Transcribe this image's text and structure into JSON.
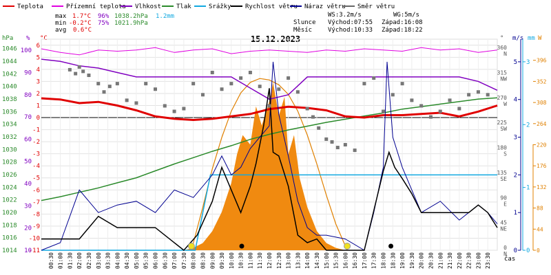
{
  "chart_data": {
    "type": "line",
    "title": "15.12.2023",
    "legend": [
      {
        "label": "Teplota",
        "color": "#e00000"
      },
      {
        "label": "Přízemní teplota",
        "color": "#e000e0"
      },
      {
        "label": "Vlhkost",
        "color": "#8000c0"
      },
      {
        "label": "Tlak",
        "color": "#2a8a2a"
      },
      {
        "label": "Srážky",
        "color": "#10a8e0"
      },
      {
        "label": "Rychlost větru",
        "color": "#000000"
      },
      {
        "label": "Náraz větru",
        "color": "#000090"
      },
      {
        "label": "Směr větru",
        "color": "#666666"
      }
    ],
    "stats": {
      "max": {
        "label": "max",
        "temp": "1.7°C",
        "hum": "96%",
        "press": "1038.2hPa",
        "rain": "1.2mm"
      },
      "min": {
        "label": "min",
        "temp": "-0.2°C",
        "hum": "75%",
        "press": "1021.9hPa"
      },
      "avg": {
        "label": "avg",
        "temp": "0.6°C"
      }
    },
    "info": {
      "wind": "WS:3.2m/s",
      "gust": "WG:5m/s",
      "sun_label": "Slunce",
      "sunrise": "Východ:07:55",
      "sunset": "Západ:16:08",
      "moon_label": "Měsíc",
      "moonrise": "Východ:10:33",
      "moonset": "Západ:18:22"
    },
    "axis_units": {
      "pressure": "hPa",
      "humidity": "%",
      "temperature": "°C",
      "direction": "°",
      "wind": "m/s",
      "rain": "mm",
      "solar": "W",
      "time": "čas"
    },
    "pressure_ticks": [
      "1014",
      "1016",
      "1018",
      "1020",
      "1022",
      "1024",
      "1026",
      "1028",
      "1030",
      "1032",
      "1034",
      "1036",
      "1038",
      "1040",
      "1042",
      "1044",
      "1046"
    ],
    "humidity_ticks": [
      "10",
      "20",
      "30",
      "40",
      "50",
      "60",
      "70",
      "80",
      "90",
      "100"
    ],
    "temperature_ticks": [
      "-11",
      "-10",
      "-9",
      "-8",
      "-7",
      "-6",
      "-5",
      "-4",
      "-3",
      "-2",
      "-1",
      "0",
      "1",
      "2",
      "3",
      "4",
      "5",
      "6"
    ],
    "direction_ticks": [
      {
        "deg": 0,
        "deg_label": "0",
        "dir": "N"
      },
      {
        "deg": 45,
        "deg_label": "45",
        "dir": "NE"
      },
      {
        "deg": 90,
        "deg_label": "90",
        "dir": "E"
      },
      {
        "deg": 135,
        "deg_label": "135",
        "dir": "SE"
      },
      {
        "deg": 180,
        "deg_label": "180",
        "dir": "S"
      },
      {
        "deg": 225,
        "deg_label": "225",
        "dir": "SW"
      },
      {
        "deg": 270,
        "deg_label": "270",
        "dir": "W"
      },
      {
        "deg": 315,
        "deg_label": "315",
        "dir": "NW"
      },
      {
        "deg": 360,
        "deg_label": "360",
        "dir": "N"
      }
    ],
    "wind_ticks": [
      "0",
      "1",
      "2",
      "3",
      "4",
      "5"
    ],
    "rain_ticks": [
      "0",
      "1",
      "2",
      "3"
    ],
    "solar_ticks": [
      "0",
      "44",
      "88",
      "132",
      "176",
      "220",
      "264",
      "308",
      "352",
      "396"
    ],
    "time_labels": [
      "00:30",
      "01:00",
      "01:30",
      "02:00",
      "02:30",
      "03:00",
      "03:30",
      "04:00",
      "04:30",
      "05:00",
      "05:30",
      "06:00",
      "06:30",
      "07:00",
      "07:30",
      "08:00",
      "08:30",
      "09:00",
      "09:30",
      "10:00",
      "10:30",
      "11:00",
      "11:30",
      "12:00",
      "12:30",
      "13:00",
      "13:30",
      "14:00",
      "14:30",
      "15:00",
      "15:30",
      "16:00",
      "16:30",
      "17:00",
      "17:30",
      "18:00",
      "18:30",
      "19:00",
      "19:30",
      "20:00",
      "20:30",
      "21:00",
      "21:30",
      "22:00",
      "22:30",
      "23:00",
      "23:30"
    ],
    "series": {
      "temperature": {
        "hours": [
          0,
          1,
          2,
          3,
          4,
          5,
          6,
          7,
          8,
          9,
          10,
          11,
          12,
          13,
          14,
          15,
          16,
          17,
          18,
          19,
          20,
          21,
          22,
          23,
          24
        ],
        "values": [
          1.6,
          1.5,
          1.2,
          1.3,
          1.0,
          0.6,
          0.1,
          -0.1,
          -0.2,
          -0.1,
          0.1,
          0.3,
          0.7,
          0.9,
          0.8,
          0.6,
          0.1,
          0.0,
          0.2,
          0.2,
          0.3,
          0.4,
          0.1,
          0.5,
          1.0
        ]
      },
      "ground_temperature": {
        "hours": [
          0,
          1,
          2,
          3,
          4,
          5,
          6,
          7,
          8,
          9,
          10,
          11,
          12,
          13,
          14,
          15,
          16,
          17,
          18,
          19,
          20,
          21,
          22,
          23,
          24
        ],
        "values": [
          5.7,
          5.4,
          5.2,
          5.6,
          5.5,
          5.6,
          5.8,
          5.4,
          5.6,
          5.7,
          5.3,
          5.5,
          5.6,
          5.5,
          5.4,
          5.6,
          5.5,
          5.7,
          5.6,
          5.5,
          5.8,
          5.6,
          5.7,
          5.4,
          5.6
        ]
      },
      "humidity": {
        "hours": [
          0,
          1,
          2,
          3,
          4,
          5,
          6,
          7,
          8,
          9,
          10,
          11,
          12,
          13,
          14,
          15,
          16,
          17,
          18,
          19,
          20,
          21,
          22,
          23,
          24
        ],
        "values": [
          96,
          95,
          93,
          92,
          90,
          88,
          88,
          88,
          88,
          88,
          88,
          83,
          78,
          80,
          88,
          88,
          88,
          88,
          88,
          88,
          88,
          88,
          88,
          86,
          82
        ]
      },
      "pressure": {
        "hours": [
          0,
          1,
          2,
          3,
          4,
          5,
          6,
          7,
          8,
          9,
          10,
          11,
          12,
          13,
          14,
          15,
          16,
          17,
          18,
          19,
          20,
          21,
          22,
          23,
          24
        ],
        "values": [
          1021.9,
          1022.5,
          1023.2,
          1023.9,
          1024.7,
          1025.5,
          1026.6,
          1027.7,
          1028.7,
          1029.7,
          1030.6,
          1031.6,
          1032.4,
          1033.1,
          1033.7,
          1034.3,
          1034.8,
          1035.3,
          1035.8,
          1036.4,
          1036.8,
          1037.2,
          1037.6,
          1038.0,
          1038.2
        ]
      },
      "rain_cumulative": {
        "hours": [
          0,
          8.1,
          8.9,
          9.0,
          24
        ],
        "values": [
          0,
          0,
          1.2,
          1.2,
          1.2
        ]
      },
      "wind_speed": {
        "hours": [
          0,
          2,
          3,
          4,
          6,
          7.5,
          8.2,
          9,
          9.5,
          10,
          10.5,
          11,
          11.3,
          11.7,
          12,
          12.2,
          12.5,
          13,
          13.5,
          14,
          14.5,
          15,
          16,
          17,
          18,
          18.3,
          18.6,
          19,
          19.5,
          20,
          21,
          22,
          22.5,
          23,
          23.5,
          24
        ],
        "values": [
          0.3,
          0.3,
          0.9,
          0.6,
          0.6,
          0.0,
          0.4,
          1.3,
          2.2,
          1.6,
          1.0,
          1.7,
          2.3,
          3.3,
          4.3,
          2.6,
          2.5,
          1.7,
          0.4,
          0.2,
          0.3,
          0.0,
          0.0,
          0.0,
          2.1,
          2.6,
          2.2,
          1.9,
          1.5,
          1.0,
          1.0,
          1.0,
          1.0,
          1.2,
          1.0,
          0.6
        ]
      },
      "wind_gust": {
        "hours": [
          0,
          1,
          2,
          3,
          4,
          5,
          6,
          7,
          8,
          9,
          9.5,
          10,
          10.5,
          11,
          11.5,
          12,
          12.2,
          12.5,
          13,
          13.5,
          14,
          14.5,
          15,
          16,
          17,
          17.5,
          18,
          18.2,
          18.5,
          19,
          19.5,
          20,
          21,
          22,
          23,
          23.5,
          24
        ],
        "values": [
          0.0,
          0.2,
          1.6,
          1.0,
          1.2,
          1.3,
          1.0,
          1.6,
          1.4,
          2.0,
          2.5,
          2.0,
          2.2,
          2.7,
          3.0,
          3.3,
          5.0,
          3.6,
          2.5,
          1.3,
          0.6,
          0.4,
          0.4,
          0.3,
          0.0,
          1.0,
          2.2,
          5.0,
          3.0,
          2.2,
          1.6,
          1.0,
          1.3,
          0.8,
          1.2,
          1.0,
          0.7
        ]
      },
      "solar_radiation": {
        "hours": [
          7.5,
          8.0,
          8.5,
          9.0,
          9.5,
          10.0,
          10.3,
          10.6,
          11.0,
          11.3,
          11.6,
          12.0,
          12.2,
          12.5,
          12.8,
          13.0,
          13.3,
          13.6,
          14.0,
          14.5,
          15.0,
          15.5,
          16.0
        ],
        "values": [
          0,
          5,
          15,
          40,
          80,
          140,
          200,
          240,
          220,
          300,
          260,
          310,
          350,
          280,
          320,
          200,
          240,
          150,
          90,
          40,
          15,
          5,
          0
        ]
      },
      "solar_theoretical": {
        "hours": [
          7.9,
          8.5,
          9.0,
          9.5,
          10.0,
          10.5,
          11.0,
          11.5,
          12.0,
          12.5,
          13.0,
          13.5,
          14.0,
          14.5,
          15.0,
          15.5,
          16.1
        ],
        "values": [
          0,
          90,
          170,
          235,
          290,
          328,
          350,
          358,
          355,
          345,
          325,
          290,
          240,
          180,
          115,
          55,
          0
        ]
      },
      "wind_direction": {
        "hours": [
          1.5,
          1.8,
          2.0,
          2.2,
          2.5,
          3.0,
          3.3,
          3.6,
          4.0,
          4.5,
          5.0,
          5.5,
          6.0,
          6.5,
          7.0,
          7.5,
          8.0,
          8.5,
          9.0,
          9.5,
          10.0,
          10.5,
          11.0,
          11.5,
          12.0,
          12.5,
          13.0,
          13.5,
          14.0,
          14.3,
          14.6,
          15.0,
          15.3,
          15.6,
          16.0,
          16.5,
          17.0,
          17.5,
          18.0,
          18.5,
          19.0,
          19.5,
          20.0,
          20.5,
          21.0,
          21.5,
          22.0,
          22.5,
          23.0,
          23.5
        ],
        "values": [
          325,
          318,
          330,
          322,
          315,
          300,
          285,
          295,
          300,
          270,
          265,
          300,
          290,
          260,
          250,
          255,
          300,
          280,
          320,
          290,
          300,
          310,
          320,
          295,
          260,
          290,
          310,
          285,
          255,
          240,
          220,
          200,
          195,
          185,
          190,
          180,
          300,
          310,
          250,
          280,
          300,
          270,
          260,
          240,
          250,
          270,
          255,
          280,
          285,
          280
        ]
      },
      "sun_markers": {
        "hours": [
          7.9,
          16.1
        ]
      },
      "moon_markers": {
        "hours": [
          10.55,
          18.4
        ]
      }
    },
    "xlim": [
      0,
      24
    ],
    "ylim": {
      "temperature": [
        -11,
        6.5
      ],
      "humidity": [
        10,
        105
      ],
      "pressure": [
        1014,
        1047.5
      ],
      "direction": [
        0,
        380
      ],
      "wind": [
        0,
        5.6
      ],
      "rain": [
        0,
        3.36
      ],
      "solar": [
        0,
        440
      ]
    }
  }
}
